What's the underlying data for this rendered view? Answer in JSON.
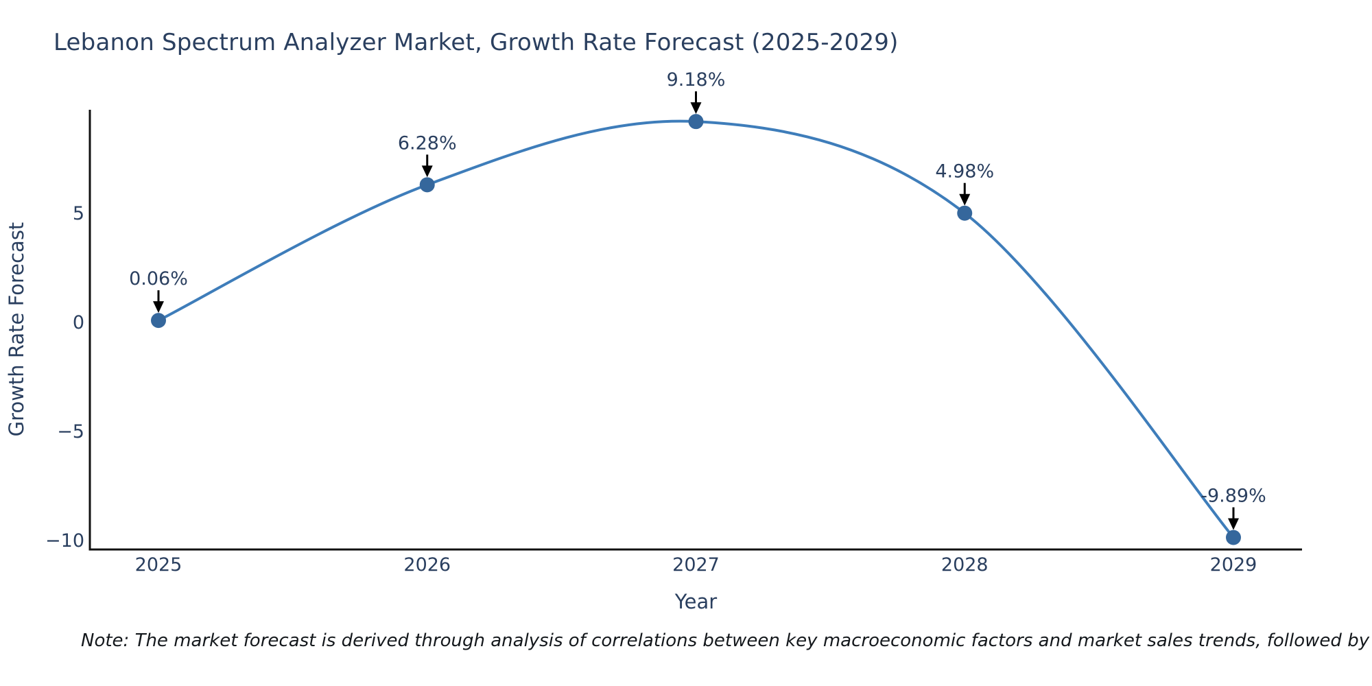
{
  "colors": {
    "background": "#ffffff",
    "line": "#3e7dba",
    "marker": "#35679c",
    "axis_line": "#111111",
    "chart_text": "#2a3f5f",
    "annotation_text": "#2a3f5f",
    "arrow": "#000000",
    "note_text": "#14181c"
  },
  "chart_data": {
    "type": "line",
    "title": "Lebanon Spectrum Analyzer Market, Growth Rate Forecast (2025-2029)",
    "x": [
      2025,
      2026,
      2027,
      2028,
      2029
    ],
    "categories": [
      "2025",
      "2026",
      "2027",
      "2028",
      "2029"
    ],
    "values": [
      0.06,
      6.28,
      9.18,
      4.98,
      -9.89
    ],
    "point_labels": [
      "0.06%",
      "6.28%",
      "9.18%",
      "4.98%",
      "-9.89%"
    ],
    "xlabel": "Year",
    "ylabel": "Growth Rate Forecast",
    "yticks": [
      5,
      0,
      -5,
      -10
    ],
    "ytick_labels": [
      "5",
      "0",
      "−5",
      "−10"
    ],
    "ylim": [
      -10.44,
      9.72
    ],
    "line_shape": "spline",
    "grid": false,
    "legend": "none",
    "note": "Note: The market forecast is derived through analysis of correlations between key macroeconomic factors and market sales trends, followed by predictive modeling to project future sales."
  }
}
